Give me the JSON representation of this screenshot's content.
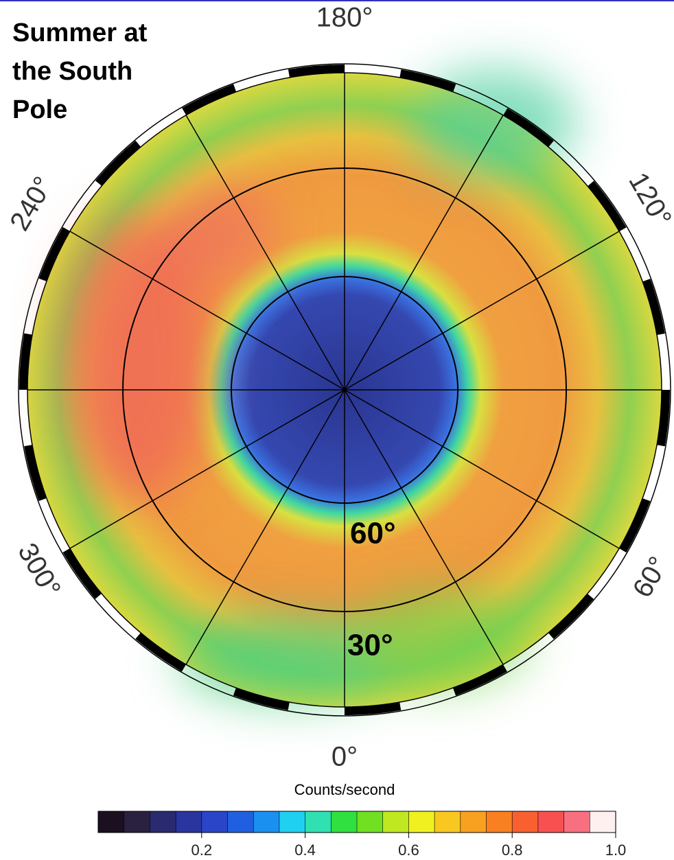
{
  "title": "Summer at the South Pole",
  "longitude_labels": [
    "180°",
    "120°",
    "60°",
    "0°",
    "300°",
    "240°"
  ],
  "latitude_labels": [
    "60°",
    "30°"
  ],
  "colorbar": {
    "label": "Counts/second",
    "lim": [
      0,
      1
    ],
    "ticks": [
      0.2,
      0.4,
      0.6,
      0.8,
      {
        "value": 1,
        "label": "1.0"
      }
    ]
  }
}
